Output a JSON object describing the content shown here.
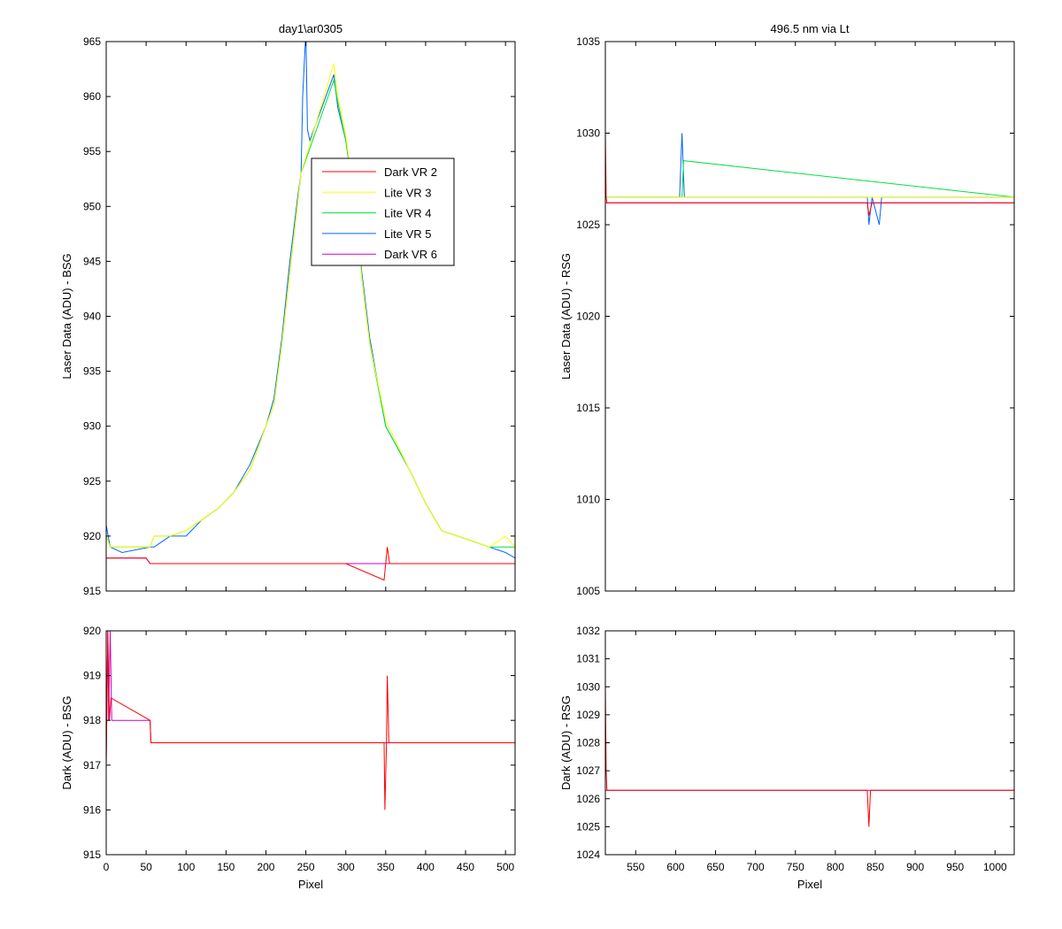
{
  "colors": {
    "Dark VR 2": "#ff0000",
    "Lite VR 3": "#ffff00",
    "Lite VR 4": "#00e040",
    "Lite VR 5": "#0066ff",
    "Dark VR 6": "#cc00cc"
  },
  "chart_data": [
    {
      "id": "bsg-laser",
      "type": "line",
      "title": "day1\\ar0305",
      "xlabel": "",
      "ylabel": "Laser Data (ADU) - BSG",
      "xlim": [
        0,
        512
      ],
      "ylim": [
        915,
        965
      ],
      "xticks": [
        0,
        50,
        100,
        150,
        200,
        250,
        300,
        350,
        400,
        450,
        500
      ],
      "xtick_labels_visible": false,
      "yticks": [
        915,
        920,
        925,
        930,
        935,
        940,
        945,
        950,
        955,
        960,
        965
      ],
      "legend": {
        "position": "center",
        "entries": [
          "Dark VR 2",
          "Lite VR 3",
          "Lite VR 4",
          "Lite VR 5",
          "Dark VR 6"
        ]
      },
      "series": [
        {
          "name": "Lite VR 5",
          "x": [
            0,
            5,
            20,
            55,
            60,
            80,
            100,
            120,
            140,
            160,
            180,
            200,
            210,
            220,
            230,
            240,
            244,
            246,
            250,
            252,
            255,
            285,
            290,
            300,
            310,
            320,
            330,
            350,
            380,
            400,
            420,
            440,
            460,
            480,
            500,
            512
          ],
          "y": [
            921,
            919,
            918.5,
            919,
            919,
            920,
            920,
            921.5,
            922.5,
            924,
            926.5,
            930,
            932.5,
            938,
            945,
            951,
            953,
            960,
            966,
            957,
            956,
            962,
            959,
            956,
            951,
            944,
            938,
            930,
            926,
            923,
            920.5,
            920,
            919.5,
            919,
            918.5,
            918
          ]
        },
        {
          "name": "Lite VR 4",
          "x": [
            0,
            5,
            20,
            55,
            60,
            80,
            100,
            120,
            140,
            160,
            180,
            200,
            210,
            220,
            230,
            240,
            244,
            285,
            290,
            300,
            310,
            320,
            330,
            350,
            380,
            400,
            420,
            440,
            460,
            480,
            500,
            512
          ],
          "y": [
            920,
            919,
            919,
            919,
            920,
            920,
            920.5,
            921.5,
            922.5,
            924,
            926,
            930,
            932,
            937.5,
            944,
            950.5,
            953,
            961.5,
            959.5,
            956,
            951,
            943.5,
            937.5,
            930,
            926,
            923,
            920.5,
            920,
            919.5,
            919,
            919,
            919
          ]
        },
        {
          "name": "Lite VR 3",
          "x": [
            0,
            5,
            20,
            55,
            60,
            80,
            100,
            120,
            140,
            160,
            180,
            200,
            210,
            220,
            230,
            240,
            244,
            285,
            290,
            300,
            310,
            320,
            330,
            350,
            380,
            400,
            420,
            440,
            460,
            480,
            500,
            512
          ],
          "y": [
            920,
            919,
            919,
            919,
            920,
            920,
            920.5,
            921.5,
            922.5,
            924,
            926,
            930,
            932,
            937.5,
            944,
            950.5,
            953,
            963,
            960,
            956.5,
            951,
            943.5,
            937.5,
            930.5,
            926,
            923,
            920.5,
            920,
            919.5,
            919,
            920,
            919
          ]
        },
        {
          "name": "Dark VR 6",
          "x": [
            0,
            50,
            55,
            100,
            200,
            300,
            350,
            400,
            450,
            512
          ],
          "y": [
            918,
            918,
            917.5,
            917.5,
            917.5,
            917.5,
            917.5,
            917.5,
            917.5,
            917.5
          ]
        },
        {
          "name": "Dark VR 2",
          "x": [
            0,
            50,
            55,
            100,
            200,
            300,
            348,
            350,
            352,
            355,
            400,
            450,
            512
          ],
          "y": [
            918,
            918,
            917.5,
            917.5,
            917.5,
            917.5,
            916,
            917.5,
            919,
            917.5,
            917.5,
            917.5,
            917.5
          ]
        }
      ]
    },
    {
      "id": "rsg-laser",
      "type": "line",
      "title": "496.5 nm via Lt",
      "xlabel": "",
      "ylabel": "Laser Data (ADU) - RSG",
      "xlim": [
        512,
        1024
      ],
      "ylim": [
        1005,
        1035
      ],
      "xticks": [
        550,
        600,
        650,
        700,
        750,
        800,
        850,
        900,
        950,
        1000
      ],
      "xtick_labels_visible": false,
      "yticks": [
        1005,
        1010,
        1015,
        1020,
        1025,
        1030,
        1035
      ],
      "series": [
        {
          "name": "Lite VR 5",
          "x": [
            512,
            600,
            605,
            608,
            611,
            700,
            840,
            842,
            846,
            855,
            858,
            1024
          ],
          "y": [
            1026.5,
            1026.5,
            1026.5,
            1030,
            1026.5,
            1026.5,
            1026.5,
            1025,
            1026.5,
            1025,
            1026.5,
            1026.5
          ]
        },
        {
          "name": "Lite VR 4",
          "x": [
            512,
            608,
            610,
            1024
          ],
          "y": [
            1026.5,
            1026.5,
            1028.5,
            1026.5
          ]
        },
        {
          "name": "Lite VR 3",
          "x": [
            512,
            1024
          ],
          "y": [
            1026.5,
            1026.5
          ]
        },
        {
          "name": "Dark VR 6",
          "x": [
            512,
            1024
          ],
          "y": [
            1026.2,
            1026.2
          ]
        },
        {
          "name": "Dark VR 2",
          "x": [
            512,
            513,
            514,
            840,
            842,
            846,
            1024
          ],
          "y": [
            1030,
            1026.5,
            1026.2,
            1026.2,
            1025.5,
            1026.2,
            1026.2
          ]
        }
      ]
    },
    {
      "id": "bsg-dark",
      "type": "line",
      "title": "",
      "xlabel": "Pixel",
      "ylabel": "Dark (ADU) - BSG",
      "xlim": [
        0,
        512
      ],
      "ylim": [
        915,
        920
      ],
      "xticks": [
        0,
        50,
        100,
        150,
        200,
        250,
        300,
        350,
        400,
        450,
        500
      ],
      "xtick_labels_visible": true,
      "yticks": [
        915,
        916,
        917,
        918,
        919,
        920
      ],
      "series": [
        {
          "name": "Dark VR 6",
          "x": [
            0,
            2,
            3,
            5,
            7,
            55,
            56,
            512
          ],
          "y": [
            917,
            920,
            918,
            920,
            918,
            918,
            917.5,
            917.5
          ]
        },
        {
          "name": "Dark VR 2",
          "x": [
            0,
            2,
            4,
            6,
            55,
            56,
            348,
            349,
            351,
            352,
            354,
            512
          ],
          "y": [
            917,
            920,
            918,
            918.5,
            918,
            917.5,
            917.5,
            916,
            917.5,
            919,
            917.5,
            917.5
          ]
        }
      ]
    },
    {
      "id": "rsg-dark",
      "type": "line",
      "title": "",
      "xlabel": "Pixel",
      "ylabel": "Dark (ADU) - RSG",
      "xlim": [
        512,
        1024
      ],
      "ylim": [
        1024,
        1032
      ],
      "xticks": [
        550,
        600,
        650,
        700,
        750,
        800,
        850,
        900,
        950,
        1000
      ],
      "xtick_labels_visible": true,
      "yticks": [
        1024,
        1025,
        1026,
        1027,
        1028,
        1029,
        1030,
        1031,
        1032
      ],
      "series": [
        {
          "name": "Dark VR 6",
          "x": [
            512,
            1024
          ],
          "y": [
            1026.3,
            1026.3
          ]
        },
        {
          "name": "Dark VR 2",
          "x": [
            512,
            513,
            514,
            840,
            842,
            844,
            1024
          ],
          "y": [
            1030,
            1027,
            1026.3,
            1026.3,
            1025,
            1026.3,
            1026.3
          ]
        }
      ]
    }
  ]
}
